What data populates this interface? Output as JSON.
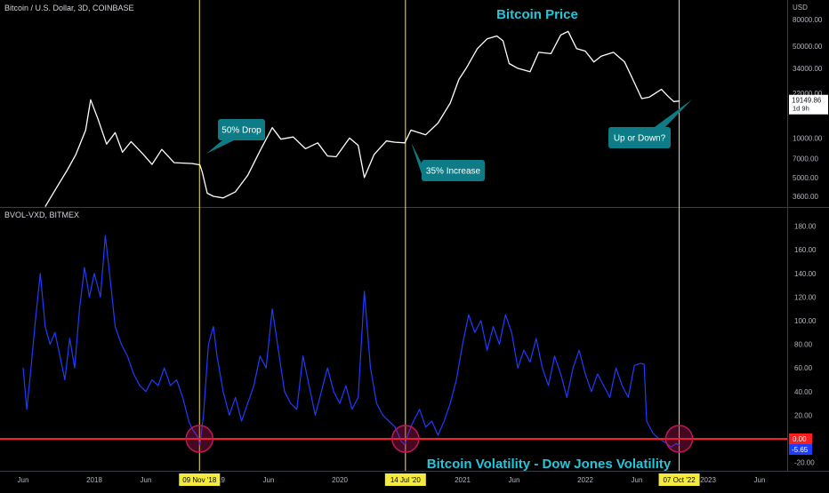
{
  "chart_data": [
    {
      "type": "line",
      "panel": "price",
      "symbol_label": "Bitcoin / U.S. Dollar, 3D, COINBASE",
      "currency_label": "USD",
      "title": "Bitcoin Price",
      "scale": "log",
      "y_ticks": [
        "80000.00",
        "50000.00",
        "34000.00",
        "22000.00",
        "10000.00",
        "7000.00",
        "5000.00",
        "3600.00"
      ],
      "last_price": "19149.86",
      "last_price_countdown": "1d 9h",
      "line_color": "#ffffff",
      "series": [
        {
          "name": "BTCUSD",
          "points": [
            [
              2017.6,
              3000
            ],
            [
              2017.7,
              4300
            ],
            [
              2017.78,
              5700
            ],
            [
              2017.85,
              7500
            ],
            [
              2017.93,
              11500
            ],
            [
              2017.97,
              19600
            ],
            [
              2018.03,
              14000
            ],
            [
              2018.1,
              9000
            ],
            [
              2018.17,
              11000
            ],
            [
              2018.23,
              7800
            ],
            [
              2018.3,
              9400
            ],
            [
              2018.4,
              7500
            ],
            [
              2018.47,
              6300
            ],
            [
              2018.55,
              8200
            ],
            [
              2018.65,
              6500
            ],
            [
              2018.8,
              6400
            ],
            [
              2018.86,
              6250
            ],
            [
              2018.88,
              5500
            ],
            [
              2018.92,
              3800
            ],
            [
              2018.97,
              3600
            ],
            [
              2019.05,
              3500
            ],
            [
              2019.15,
              3900
            ],
            [
              2019.25,
              5200
            ],
            [
              2019.35,
              8000
            ],
            [
              2019.45,
              12000
            ],
            [
              2019.52,
              9800
            ],
            [
              2019.62,
              10200
            ],
            [
              2019.72,
              8300
            ],
            [
              2019.82,
              9200
            ],
            [
              2019.9,
              7300
            ],
            [
              2019.97,
              7200
            ],
            [
              2020.08,
              10000
            ],
            [
              2020.15,
              8800
            ],
            [
              2020.2,
              5000
            ],
            [
              2020.28,
              7500
            ],
            [
              2020.38,
              9500
            ],
            [
              2020.45,
              9300
            ],
            [
              2020.53,
              9200
            ],
            [
              2020.58,
              11500
            ],
            [
              2020.7,
              10600
            ],
            [
              2020.8,
              13000
            ],
            [
              2020.9,
              18500
            ],
            [
              2020.97,
              28000
            ],
            [
              2021.03,
              34000
            ],
            [
              2021.12,
              48000
            ],
            [
              2021.2,
              57000
            ],
            [
              2021.28,
              60000
            ],
            [
              2021.33,
              55000
            ],
            [
              2021.38,
              37000
            ],
            [
              2021.45,
              34000
            ],
            [
              2021.55,
              32000
            ],
            [
              2021.62,
              45000
            ],
            [
              2021.72,
              44000
            ],
            [
              2021.8,
              61000
            ],
            [
              2021.86,
              65000
            ],
            [
              2021.93,
              48000
            ],
            [
              2022.0,
              46000
            ],
            [
              2022.07,
              38000
            ],
            [
              2022.13,
              42000
            ],
            [
              2022.23,
              45000
            ],
            [
              2022.32,
              38000
            ],
            [
              2022.38,
              29000
            ],
            [
              2022.46,
              20000
            ],
            [
              2022.52,
              20500
            ],
            [
              2022.62,
              23500
            ],
            [
              2022.67,
              21000
            ],
            [
              2022.72,
              19000
            ],
            [
              2022.77,
              19150
            ]
          ]
        }
      ]
    },
    {
      "type": "line",
      "panel": "volatility",
      "indicator_label": "BVOL-VXD, BITMEX",
      "title": "Bitcoin Volatility - Dow Jones Volatility",
      "y_ticks": [
        "180.00",
        "160.00",
        "140.00",
        "120.00",
        "100.00",
        "80.00",
        "60.00",
        "40.00",
        "20.00",
        "-20.00"
      ],
      "zero_label": "0.00",
      "last_value": "-5.65",
      "zero_line_color": "#ff1e1e",
      "line_color": "#1e3cff",
      "series": [
        {
          "name": "BVOL-VXD",
          "points": [
            [
              2017.42,
              60
            ],
            [
              2017.45,
              25
            ],
            [
              2017.48,
              55
            ],
            [
              2017.52,
              100
            ],
            [
              2017.56,
              140
            ],
            [
              2017.6,
              95
            ],
            [
              2017.64,
              80
            ],
            [
              2017.68,
              90
            ],
            [
              2017.72,
              70
            ],
            [
              2017.76,
              50
            ],
            [
              2017.8,
              85
            ],
            [
              2017.84,
              60
            ],
            [
              2017.88,
              110
            ],
            [
              2017.92,
              145
            ],
            [
              2017.96,
              120
            ],
            [
              2018.0,
              140
            ],
            [
              2018.05,
              120
            ],
            [
              2018.09,
              172
            ],
            [
              2018.13,
              135
            ],
            [
              2018.17,
              95
            ],
            [
              2018.22,
              80
            ],
            [
              2018.27,
              70
            ],
            [
              2018.32,
              55
            ],
            [
              2018.37,
              45
            ],
            [
              2018.42,
              40
            ],
            [
              2018.47,
              50
            ],
            [
              2018.52,
              45
            ],
            [
              2018.57,
              60
            ],
            [
              2018.62,
              45
            ],
            [
              2018.67,
              50
            ],
            [
              2018.72,
              35
            ],
            [
              2018.77,
              15
            ],
            [
              2018.8,
              8
            ],
            [
              2018.84,
              2
            ],
            [
              2018.86,
              -5
            ],
            [
              2018.89,
              20
            ],
            [
              2018.93,
              80
            ],
            [
              2018.97,
              95
            ],
            [
              2019.0,
              70
            ],
            [
              2019.05,
              40
            ],
            [
              2019.1,
              20
            ],
            [
              2019.15,
              35
            ],
            [
              2019.2,
              15
            ],
            [
              2019.25,
              30
            ],
            [
              2019.3,
              45
            ],
            [
              2019.35,
              70
            ],
            [
              2019.4,
              60
            ],
            [
              2019.45,
              110
            ],
            [
              2019.5,
              75
            ],
            [
              2019.55,
              40
            ],
            [
              2019.6,
              30
            ],
            [
              2019.65,
              25
            ],
            [
              2019.7,
              70
            ],
            [
              2019.75,
              45
            ],
            [
              2019.8,
              20
            ],
            [
              2019.85,
              40
            ],
            [
              2019.9,
              60
            ],
            [
              2019.95,
              40
            ],
            [
              2020.0,
              30
            ],
            [
              2020.05,
              45
            ],
            [
              2020.1,
              25
            ],
            [
              2020.15,
              35
            ],
            [
              2020.2,
              125
            ],
            [
              2020.25,
              60
            ],
            [
              2020.3,
              30
            ],
            [
              2020.35,
              20
            ],
            [
              2020.4,
              15
            ],
            [
              2020.45,
              10
            ],
            [
              2020.5,
              -2
            ],
            [
              2020.53,
              -5
            ],
            [
              2020.56,
              5
            ],
            [
              2020.6,
              15
            ],
            [
              2020.65,
              25
            ],
            [
              2020.7,
              10
            ],
            [
              2020.75,
              15
            ],
            [
              2020.8,
              3
            ],
            [
              2020.85,
              15
            ],
            [
              2020.9,
              30
            ],
            [
              2020.95,
              50
            ],
            [
              2021.0,
              80
            ],
            [
              2021.05,
              105
            ],
            [
              2021.1,
              90
            ],
            [
              2021.15,
              100
            ],
            [
              2021.2,
              75
            ],
            [
              2021.25,
              95
            ],
            [
              2021.3,
              80
            ],
            [
              2021.35,
              105
            ],
            [
              2021.4,
              90
            ],
            [
              2021.45,
              60
            ],
            [
              2021.5,
              75
            ],
            [
              2021.55,
              65
            ],
            [
              2021.6,
              85
            ],
            [
              2021.65,
              60
            ],
            [
              2021.7,
              45
            ],
            [
              2021.75,
              70
            ],
            [
              2021.8,
              55
            ],
            [
              2021.85,
              35
            ],
            [
              2021.9,
              60
            ],
            [
              2021.95,
              75
            ],
            [
              2022.0,
              55
            ],
            [
              2022.05,
              40
            ],
            [
              2022.1,
              55
            ],
            [
              2022.15,
              45
            ],
            [
              2022.2,
              35
            ],
            [
              2022.25,
              60
            ],
            [
              2022.3,
              45
            ],
            [
              2022.35,
              35
            ],
            [
              2022.4,
              62
            ],
            [
              2022.45,
              64
            ],
            [
              2022.48,
              63
            ],
            [
              2022.5,
              15
            ],
            [
              2022.55,
              5
            ],
            [
              2022.6,
              0
            ],
            [
              2022.65,
              -3
            ],
            [
              2022.7,
              -7
            ],
            [
              2022.74,
              -4
            ],
            [
              2022.77,
              -5.65
            ]
          ]
        }
      ]
    }
  ],
  "x_axis_ticks": [
    "Jun",
    "2018",
    "Jun",
    "2019",
    "Jun",
    "2020",
    "Jun",
    "2021",
    "Jun",
    "2022",
    "Jun",
    "2023",
    "Jun"
  ],
  "events": [
    {
      "date_label": "09 Nov '18",
      "callout": "50% Drop",
      "callout_panel": "price"
    },
    {
      "date_label": "14 Jul '20",
      "callout": "35% Increase",
      "callout_panel": "price"
    },
    {
      "date_label": "07 Oct '22",
      "callout": "Up or Down?",
      "callout_panel": "price"
    }
  ],
  "colors": {
    "background": "#000000",
    "event_line": "#f5eb3b",
    "callout_bg": "#0e7c86",
    "title": "#26c6da",
    "circle": "#c2185b"
  }
}
